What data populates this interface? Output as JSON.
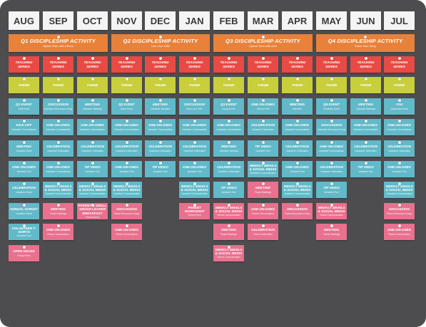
{
  "months": [
    "AUG",
    "SEP",
    "OCT",
    "NOV",
    "DEC",
    "JAN",
    "FEB",
    "MAR",
    "APR",
    "MAY",
    "JUN",
    "JUL"
  ],
  "quarters": [
    {
      "title": "Q1 DISCIPLESHIP ACTIVITY",
      "sub": "Spend Time with Others",
      "start": 0,
      "span": 3
    },
    {
      "title": "Q2 DISCIPLESHIP ACTIVITY",
      "sub": "Use Your Gifts",
      "start": 3,
      "span": 3
    },
    {
      "title": "Q3 DISCIPLESHIP ACTIVITY",
      "sub": "Spend Time with God",
      "start": 6,
      "span": 3
    },
    {
      "title": "Q4 DISCIPLESHIP ACTIVITY",
      "sub": "Share Your Story",
      "start": 9,
      "span": 3
    }
  ],
  "colors": {
    "red": "#e84a45",
    "yellow": "#c8cf3a",
    "blue": "#62b9c9",
    "pink": "#e9708e",
    "orange": "#e8823a",
    "board": "#4d4d50"
  },
  "columns": [
    [
      {
        "t": "TEACHING SERIES",
        "c": "red"
      },
      {
        "t": "THEME",
        "c": "yellow"
      },
      {
        "t": "Q1 EVENT",
        "s": "Staff Event",
        "c": "blue"
      },
      {
        "t": "KICK-OFF",
        "s": "Volunteer Conversations",
        "c": "blue"
      },
      {
        "t": "MEETING",
        "s": "Volunteer Event",
        "c": "blue"
      },
      {
        "t": "ONE-ON-ONES",
        "s": "Volunteer Tool",
        "c": "blue"
      },
      {
        "t": "CELEBRATION",
        "s": "Volunteer Event",
        "c": "blue"
      },
      {
        "t": "ANNUAL SURVEY",
        "s": "Volunteer Event",
        "c": "blue"
      },
      {
        "t": "VOLUNTEER T-SHIRTS",
        "s": "Volunteer Tool",
        "c": "blue"
      },
      {
        "t": "OPEN HOUSE",
        "s": "Family Event",
        "c": "pink"
      }
    ],
    [
      {
        "t": "TEACHING SERIES",
        "c": "red"
      },
      {
        "t": "THEME",
        "c": "yellow"
      },
      {
        "t": "DISCUSSION",
        "s": "Volunteer Discussion Group",
        "c": "blue"
      },
      {
        "t": "ONE-ON-ONES",
        "s": "Volunteer Conversations",
        "c": "blue"
      },
      {
        "t": "CELEBRATION",
        "s": "Volunteer Celebration",
        "c": "blue"
      },
      {
        "t": "ONE-ON-ONES",
        "s": "Volunteer Conversations",
        "c": "blue"
      },
      {
        "t": "WEEKLY EMAILS & SOCIAL MEDIA",
        "s": "Volunteer Communication",
        "c": "blue"
      },
      {
        "t": "MEETING",
        "s": "Parent Meetings",
        "c": "pink"
      },
      {
        "t": "ONE-ON-ONES",
        "s": "Parent Conversations",
        "c": "pink"
      }
    ],
    [
      {
        "t": "TEACHING SERIES",
        "c": "red"
      },
      {
        "t": "THEME",
        "c": "yellow"
      },
      {
        "t": "MEETING",
        "s": "Volunteer Meetings",
        "c": "blue"
      },
      {
        "t": "ONE-ON-ONES",
        "s": "Volunteer Conversations",
        "c": "blue"
      },
      {
        "t": "CELEBRATION",
        "s": "Volunteer Celebration",
        "c": "blue"
      },
      {
        "t": "TIP VIDEO",
        "s": "Volunteer Tool",
        "c": "blue"
      },
      {
        "t": "WEEKLY EMAILS & SOCIAL MEDIA",
        "s": "Volunteer Communication",
        "c": "blue"
      },
      {
        "t": "PARENT & SMALL GROUP LEADER BREAKFAST",
        "s": "Parent Event",
        "c": "pink"
      }
    ],
    [
      {
        "t": "TEACHING SERIES",
        "c": "red"
      },
      {
        "t": "THEME",
        "c": "yellow"
      },
      {
        "t": "Q2 EVENT",
        "s": "Move Event",
        "c": "blue"
      },
      {
        "t": "ONE-ON-ONES",
        "s": "Volunteer Conversations",
        "c": "blue"
      },
      {
        "t": "CELEBRATION",
        "s": "Volunteer Celebration",
        "c": "blue"
      },
      {
        "t": "ONE-ON-ONES",
        "s": "Volunteer Tool",
        "c": "blue"
      },
      {
        "t": "WEEKLY EMAILS & SOCIAL MEDIA",
        "s": "Volunteer Communication",
        "c": "blue"
      },
      {
        "t": "DISCUSSION",
        "s": "Parent Discussion Group",
        "c": "pink"
      },
      {
        "t": "ONE-ON-ONES",
        "s": "Parent Conversations",
        "c": "pink"
      }
    ],
    [
      {
        "t": "TEACHING SERIES",
        "c": "red"
      },
      {
        "t": "THEME",
        "c": "yellow"
      },
      {
        "t": "MEETING",
        "s": "Volunteer Vacation",
        "c": "blue"
      },
      {
        "t": "ONE-ON-ONES",
        "s": "Volunteer Conversations",
        "c": "blue"
      },
      {
        "t": "CELEBRATION",
        "s": "Volunteer Celebration",
        "c": "blue"
      },
      {
        "t": "TIP VIDEO",
        "s": "Volunteer Tool",
        "c": "blue"
      }
    ],
    [
      {
        "t": "TEACHING SERIES",
        "c": "red"
      },
      {
        "t": "THEME",
        "c": "yellow"
      },
      {
        "t": "DISCUSSION",
        "s": "Move Live LIVE",
        "c": "blue"
      },
      {
        "t": "ONE-ON-ONES",
        "s": "Volunteer Conversations",
        "c": "blue"
      },
      {
        "t": "CELEBRATION",
        "s": "Volunteer Celebration",
        "c": "blue"
      },
      {
        "t": "ONE-ON-ONES",
        "s": "Volunteer Tool",
        "c": "blue"
      },
      {
        "t": "WEEKLY EMAILS & SOCIAL MEDIA",
        "s": "Volunteer Communication",
        "c": "blue"
      },
      {
        "t": "PARENT WORKSHOP",
        "s": "Parent Event",
        "c": "pink"
      }
    ],
    [
      {
        "t": "TEACHING SERIES",
        "c": "red"
      },
      {
        "t": "THEME",
        "c": "yellow"
      },
      {
        "t": "Q3 EVENT",
        "s": "Group Event",
        "c": "blue"
      },
      {
        "t": "ONE-ON-ONES",
        "s": "Volunteer Conversations",
        "c": "blue"
      },
      {
        "t": "MEETING",
        "s": "Volunteer Meeting",
        "c": "blue"
      },
      {
        "t": "CELEBRATION",
        "s": "Volunteer Celebration",
        "c": "blue"
      },
      {
        "t": "TIP VIDEO",
        "s": "Volunteer Tool",
        "c": "blue"
      },
      {
        "t": "WEEKLY EMAILS & SOCIAL MEDIA",
        "s": "Parent Communication",
        "c": "pink"
      },
      {
        "t": "MEETING",
        "s": "Parent Meetings",
        "c": "pink"
      },
      {
        "t": "WEEKLY EMAILS & SOCIAL MEDIA",
        "s": "Parent Communication",
        "c": "pink"
      }
    ],
    [
      {
        "t": "TEACHING SERIES",
        "c": "red"
      },
      {
        "t": "THEME",
        "c": "yellow"
      },
      {
        "t": "ONE-ON-ONES",
        "s": "Move In Tell",
        "c": "blue"
      },
      {
        "t": "CELEBRATION",
        "s": "Volunteer Celebration",
        "c": "blue"
      },
      {
        "t": "TIP VIDEO",
        "s": "Volunteer Tool",
        "c": "blue"
      },
      {
        "t": "WEEKLY EMAILS & SOCIAL MEDIA",
        "s": "Volunteer Communication",
        "c": "blue"
      },
      {
        "t": "MEETING",
        "s": "Parent Meetings",
        "c": "pink"
      },
      {
        "t": "ONE-ON-ONES",
        "s": "Parent Conversations",
        "c": "pink"
      },
      {
        "t": "CELEBRATION",
        "s": "Parent Celebration",
        "c": "pink"
      }
    ],
    [
      {
        "t": "TEACHING SERIES",
        "c": "red"
      },
      {
        "t": "THEME",
        "c": "yellow"
      },
      {
        "t": "MEETING",
        "s": "Volunteer",
        "c": "blue"
      },
      {
        "t": "ONE-ON-ONES",
        "s": "Volunteer Conversations",
        "c": "blue"
      },
      {
        "t": "CELEBRATION",
        "s": "Volunteer Celebration",
        "c": "blue"
      },
      {
        "t": "ONE-ON-ONES",
        "s": "Volunteer Tool",
        "c": "blue"
      },
      {
        "t": "WEEKLY EMAILS & SOCIAL MEDIA",
        "s": "Volunteer Communication",
        "c": "blue"
      },
      {
        "t": "DISCUSSION",
        "s": "Parent Discussion Group",
        "c": "pink"
      }
    ],
    [
      {
        "t": "TEACHING SERIES",
        "c": "red"
      },
      {
        "t": "THEME",
        "c": "yellow"
      },
      {
        "t": "Q4 EVENT",
        "s": "Reminder Event",
        "c": "blue"
      },
      {
        "t": "DISCUSSION",
        "s": "Volunteer Discussion Group",
        "c": "blue"
      },
      {
        "t": "ONE-ON-ONES",
        "s": "Volunteer Conversations",
        "c": "blue"
      },
      {
        "t": "CELEBRATION",
        "s": "Volunteer Celebration",
        "c": "blue"
      },
      {
        "t": "TIP VIDEO",
        "s": "Volunteer Tool",
        "c": "blue"
      },
      {
        "t": "WEEKLY EMAILS & SOCIAL MEDIA",
        "s": "Parent Communication",
        "c": "pink"
      },
      {
        "t": "MEETING",
        "s": "Family Meetings",
        "c": "pink"
      }
    ],
    [
      {
        "t": "TEACHING SERIES",
        "c": "red"
      },
      {
        "t": "THEME",
        "c": "yellow"
      },
      {
        "t": "MEETING",
        "s": "Volunteer Meetings",
        "c": "blue"
      },
      {
        "t": "ONE-ON-ONES",
        "s": "Volunteer Conversations",
        "c": "blue"
      },
      {
        "t": "CELEBRATION",
        "s": "Volunteer Celebration",
        "c": "blue"
      },
      {
        "t": "TIP VIDEO",
        "s": "Volunteer Tool",
        "c": "blue"
      }
    ],
    [
      {
        "t": "TEACHING SERIES",
        "c": "red"
      },
      {
        "t": "THEME",
        "c": "yellow"
      },
      {
        "t": "YOU",
        "s": "Celebration Event",
        "c": "blue"
      },
      {
        "t": "ONE-ON-ONES",
        "s": "Volunteer Conversations",
        "c": "blue"
      },
      {
        "t": "CELEBRATION",
        "s": "Volunteer Celebration",
        "c": "blue"
      },
      {
        "t": "ONE-ON-ONES",
        "s": "Volunteer Tool",
        "c": "blue"
      },
      {
        "t": "WEEKLY EMAILS & SOCIAL MEDIA",
        "s": "Volunteer Communication",
        "c": "blue"
      },
      {
        "t": "DISCUSSION",
        "s": "Parent Discussion Group",
        "c": "pink"
      },
      {
        "t": "ONE-ON-ONES",
        "s": "Parent Conversations",
        "c": "pink"
      }
    ]
  ]
}
